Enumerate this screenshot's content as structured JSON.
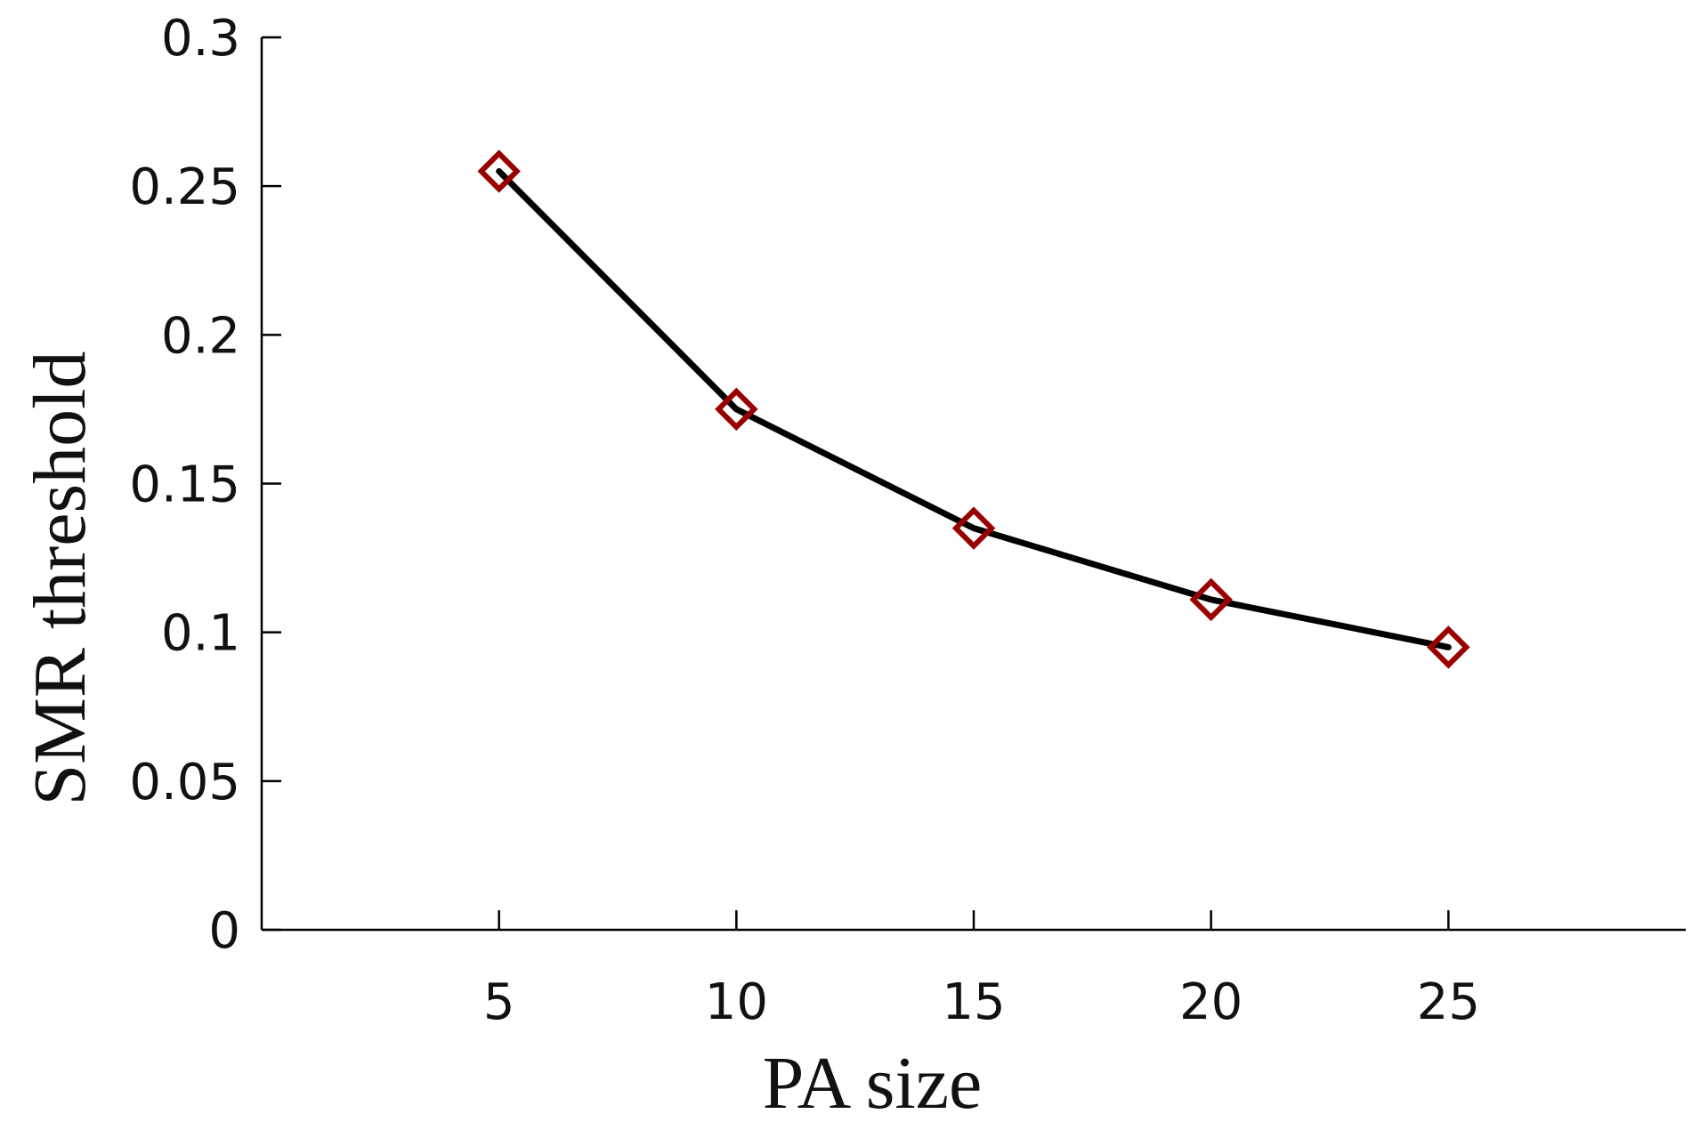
{
  "chart_data": {
    "type": "line",
    "title": "",
    "xlabel": "PA  size",
    "ylabel": "SMR threshold",
    "x": [
      5,
      10,
      15,
      20,
      25
    ],
    "series": [
      {
        "values": [
          0.255,
          0.175,
          0.135,
          0.111,
          0.095
        ]
      }
    ],
    "xlim": [
      0,
      30
    ],
    "ylim": [
      0,
      0.3
    ],
    "x_ticks": [
      5,
      10,
      15,
      20,
      25
    ],
    "x_tick_labels": [
      "5",
      "10",
      "15",
      "20",
      "25"
    ],
    "y_ticks": [
      0,
      0.05,
      0.1,
      0.15,
      0.2,
      0.25,
      0.3
    ],
    "y_tick_labels": [
      "0",
      "0.05",
      "0.1",
      "0.15",
      "0.2",
      "0.25",
      "0.3"
    ],
    "grid": false,
    "legend": "none",
    "line_color": "#000000",
    "marker": "diamond",
    "marker_color": "#990000"
  }
}
